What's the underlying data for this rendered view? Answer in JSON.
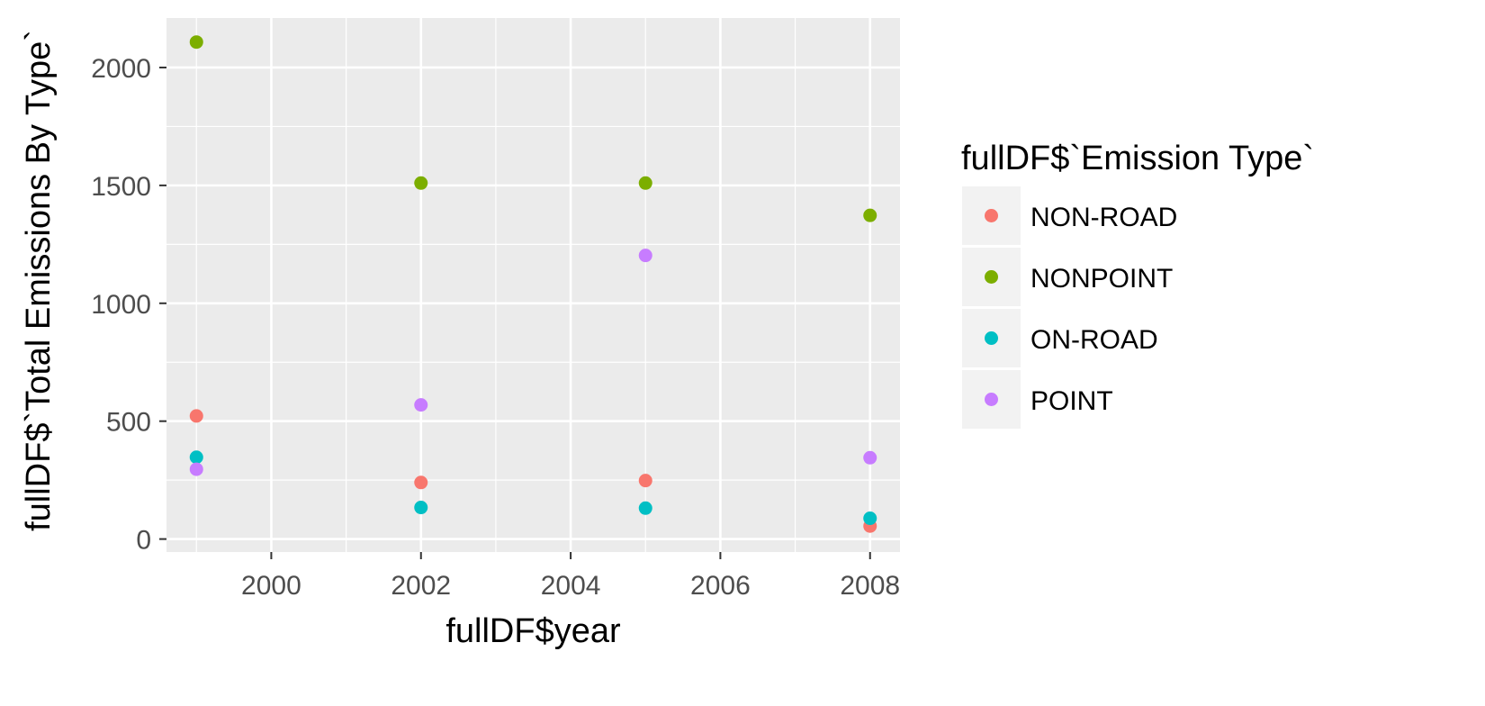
{
  "chart_data": {
    "type": "scatter",
    "xlabel": "fullDF$year",
    "ylabel": "fullDF$`Total Emissions By Type`",
    "x_ticks": [
      2000,
      2002,
      2004,
      2006,
      2008
    ],
    "y_ticks": [
      0,
      500,
      1000,
      1500,
      2000
    ],
    "xlim": [
      1998.6,
      2008.4
    ],
    "ylim": [
      -55,
      2210
    ],
    "grid": true,
    "legend": {
      "title": "fullDF$`Emission Type`",
      "placement": "right"
    },
    "x": [
      1999,
      2002,
      2005,
      2008
    ],
    "series": [
      {
        "name": "NON-ROAD",
        "color": "#F8766D",
        "values": [
          522,
          240,
          248,
          55
        ]
      },
      {
        "name": "NONPOINT",
        "color": "#7CAE00",
        "values": [
          2108,
          1510,
          1510,
          1373
        ]
      },
      {
        "name": "ON-ROAD",
        "color": "#00BFC4",
        "values": [
          347,
          134,
          131,
          88
        ]
      },
      {
        "name": "POINT",
        "color": "#C77CFF",
        "values": [
          296,
          569,
          1203,
          345
        ]
      }
    ]
  }
}
